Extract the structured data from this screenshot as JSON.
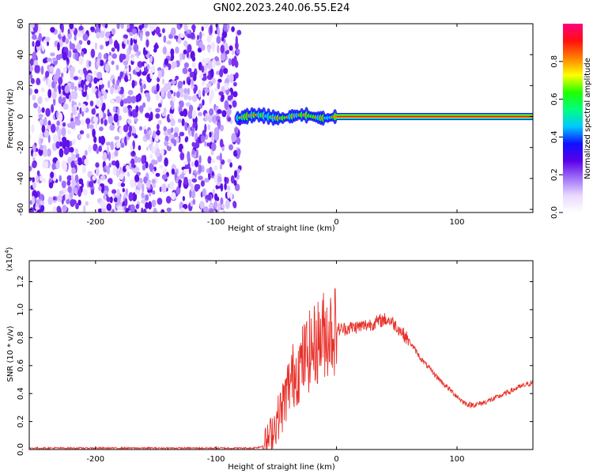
{
  "title": "GN02.2023.240.06.55.E24",
  "colors": {
    "snr_line": "#e8302a",
    "axis": "#000000",
    "colormap": [
      "#ffffff",
      "#e8d8ff",
      "#a070f8",
      "#5a00e8",
      "#1010ff",
      "#00c8ff",
      "#00ff80",
      "#20ff00",
      "#ffff00",
      "#ff8000",
      "#ff1010",
      "#ff0080"
    ]
  },
  "chart_data": [
    {
      "type": "heatmap",
      "xlabel": "Height of straight line (km)",
      "ylabel": "Frequency (Hz)",
      "xlim": [
        -255,
        163
      ],
      "ylim": [
        -62,
        60
      ],
      "xticks": [
        -200,
        -100,
        0,
        100
      ],
      "xtick_labels": [
        "-200",
        "-100",
        "0",
        "100"
      ],
      "yticks": [
        -60,
        -40,
        -20,
        0,
        20,
        40,
        60
      ],
      "ytick_labels": [
        "-60",
        "-40",
        "-20",
        "0",
        "20",
        "40",
        "60"
      ],
      "noise_region_x": [
        -255,
        -80
      ],
      "signal_start_x": -82,
      "carrier_frequency_hz": 0,
      "colorbar": {
        "label": "Normalized spectral amplitude",
        "range": [
          0,
          1
        ],
        "ticks": [
          0.0,
          0.2,
          0.4,
          0.6,
          0.8
        ],
        "tick_labels": [
          "0.0",
          "0.2",
          "0.4",
          "0.6",
          "0.8"
        ]
      }
    },
    {
      "type": "line",
      "xlabel": "Height of straight line (km)",
      "ylabel": "SNR (10 * v/v)",
      "y_scale_note": "(x10",
      "y_scale_exponent": "4",
      "xlim": [
        -255,
        163
      ],
      "ylim": [
        0,
        1.35
      ],
      "xticks": [
        -200,
        -100,
        0,
        100
      ],
      "xtick_labels": [
        "-200",
        "-100",
        "0",
        "100"
      ],
      "yticks": [
        0.0,
        0.2,
        0.4,
        0.6,
        0.8,
        1.0,
        1.2
      ],
      "ytick_labels": [
        "0.0",
        "0.2",
        "0.4",
        "0.6",
        "0.8",
        "1.0",
        "1.2"
      ],
      "series": [
        {
          "x": [
            -255,
            -200,
            -150,
            -100,
            -70,
            -62,
            -58,
            -55,
            -50,
            -45,
            -40,
            -35,
            -30,
            -25,
            -20,
            -15,
            -10,
            -5,
            0,
            5,
            10,
            20,
            30,
            40,
            45,
            50,
            60,
            70,
            80,
            90,
            95,
            100,
            105,
            110,
            115,
            120,
            130,
            140,
            150,
            163
          ],
          "y": [
            0.01,
            0.01,
            0.01,
            0.01,
            0.01,
            0.02,
            0.05,
            0.1,
            0.2,
            0.3,
            0.45,
            0.55,
            0.6,
            0.68,
            0.72,
            0.78,
            0.83,
            0.85,
            0.86,
            0.86,
            0.87,
            0.88,
            0.9,
            0.93,
            0.92,
            0.88,
            0.78,
            0.65,
            0.55,
            0.46,
            0.42,
            0.38,
            0.34,
            0.32,
            0.32,
            0.33,
            0.36,
            0.4,
            0.44,
            0.48
          ]
        }
      ]
    }
  ]
}
